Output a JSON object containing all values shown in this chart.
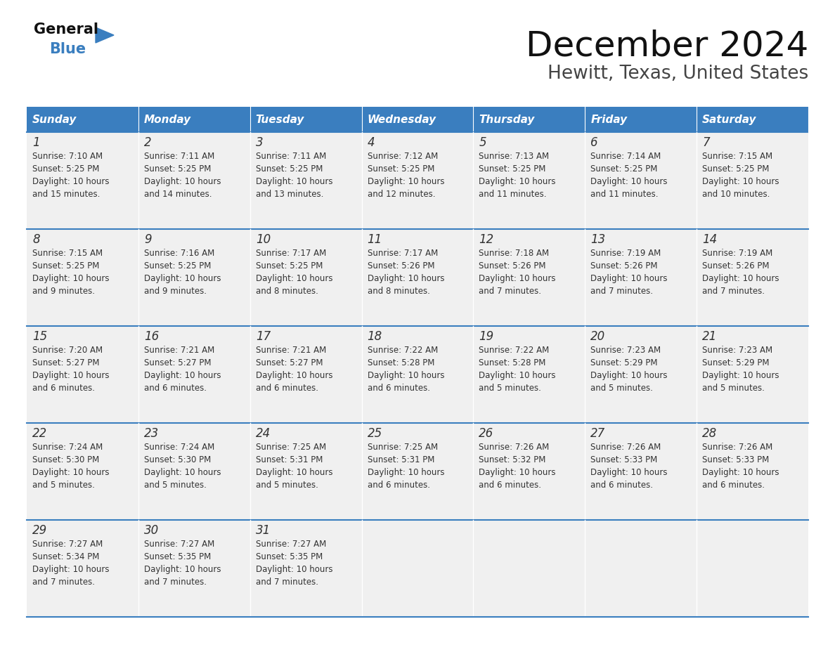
{
  "title": "December 2024",
  "subtitle": "Hewitt, Texas, United States",
  "header_bg": "#3a7ebf",
  "header_text_color": "#ffffff",
  "cell_bg_light": "#f0f0f0",
  "text_color": "#333333",
  "border_color": "#3a7ebf",
  "days_of_week": [
    "Sunday",
    "Monday",
    "Tuesday",
    "Wednesday",
    "Thursday",
    "Friday",
    "Saturday"
  ],
  "calendar": [
    [
      {
        "day": 1,
        "sunrise": "7:10 AM",
        "sunset": "5:25 PM",
        "daylight": "10 hours and 15 minutes."
      },
      {
        "day": 2,
        "sunrise": "7:11 AM",
        "sunset": "5:25 PM",
        "daylight": "10 hours and 14 minutes."
      },
      {
        "day": 3,
        "sunrise": "7:11 AM",
        "sunset": "5:25 PM",
        "daylight": "10 hours and 13 minutes."
      },
      {
        "day": 4,
        "sunrise": "7:12 AM",
        "sunset": "5:25 PM",
        "daylight": "10 hours and 12 minutes."
      },
      {
        "day": 5,
        "sunrise": "7:13 AM",
        "sunset": "5:25 PM",
        "daylight": "10 hours and 11 minutes."
      },
      {
        "day": 6,
        "sunrise": "7:14 AM",
        "sunset": "5:25 PM",
        "daylight": "10 hours and 11 minutes."
      },
      {
        "day": 7,
        "sunrise": "7:15 AM",
        "sunset": "5:25 PM",
        "daylight": "10 hours and 10 minutes."
      }
    ],
    [
      {
        "day": 8,
        "sunrise": "7:15 AM",
        "sunset": "5:25 PM",
        "daylight": "10 hours and 9 minutes."
      },
      {
        "day": 9,
        "sunrise": "7:16 AM",
        "sunset": "5:25 PM",
        "daylight": "10 hours and 9 minutes."
      },
      {
        "day": 10,
        "sunrise": "7:17 AM",
        "sunset": "5:25 PM",
        "daylight": "10 hours and 8 minutes."
      },
      {
        "day": 11,
        "sunrise": "7:17 AM",
        "sunset": "5:26 PM",
        "daylight": "10 hours and 8 minutes."
      },
      {
        "day": 12,
        "sunrise": "7:18 AM",
        "sunset": "5:26 PM",
        "daylight": "10 hours and 7 minutes."
      },
      {
        "day": 13,
        "sunrise": "7:19 AM",
        "sunset": "5:26 PM",
        "daylight": "10 hours and 7 minutes."
      },
      {
        "day": 14,
        "sunrise": "7:19 AM",
        "sunset": "5:26 PM",
        "daylight": "10 hours and 7 minutes."
      }
    ],
    [
      {
        "day": 15,
        "sunrise": "7:20 AM",
        "sunset": "5:27 PM",
        "daylight": "10 hours and 6 minutes."
      },
      {
        "day": 16,
        "sunrise": "7:21 AM",
        "sunset": "5:27 PM",
        "daylight": "10 hours and 6 minutes."
      },
      {
        "day": 17,
        "sunrise": "7:21 AM",
        "sunset": "5:27 PM",
        "daylight": "10 hours and 6 minutes."
      },
      {
        "day": 18,
        "sunrise": "7:22 AM",
        "sunset": "5:28 PM",
        "daylight": "10 hours and 6 minutes."
      },
      {
        "day": 19,
        "sunrise": "7:22 AM",
        "sunset": "5:28 PM",
        "daylight": "10 hours and 5 minutes."
      },
      {
        "day": 20,
        "sunrise": "7:23 AM",
        "sunset": "5:29 PM",
        "daylight": "10 hours and 5 minutes."
      },
      {
        "day": 21,
        "sunrise": "7:23 AM",
        "sunset": "5:29 PM",
        "daylight": "10 hours and 5 minutes."
      }
    ],
    [
      {
        "day": 22,
        "sunrise": "7:24 AM",
        "sunset": "5:30 PM",
        "daylight": "10 hours and 5 minutes."
      },
      {
        "day": 23,
        "sunrise": "7:24 AM",
        "sunset": "5:30 PM",
        "daylight": "10 hours and 5 minutes."
      },
      {
        "day": 24,
        "sunrise": "7:25 AM",
        "sunset": "5:31 PM",
        "daylight": "10 hours and 5 minutes."
      },
      {
        "day": 25,
        "sunrise": "7:25 AM",
        "sunset": "5:31 PM",
        "daylight": "10 hours and 6 minutes."
      },
      {
        "day": 26,
        "sunrise": "7:26 AM",
        "sunset": "5:32 PM",
        "daylight": "10 hours and 6 minutes."
      },
      {
        "day": 27,
        "sunrise": "7:26 AM",
        "sunset": "5:33 PM",
        "daylight": "10 hours and 6 minutes."
      },
      {
        "day": 28,
        "sunrise": "7:26 AM",
        "sunset": "5:33 PM",
        "daylight": "10 hours and 6 minutes."
      }
    ],
    [
      {
        "day": 29,
        "sunrise": "7:27 AM",
        "sunset": "5:34 PM",
        "daylight": "10 hours and 7 minutes."
      },
      {
        "day": 30,
        "sunrise": "7:27 AM",
        "sunset": "5:35 PM",
        "daylight": "10 hours and 7 minutes."
      },
      {
        "day": 31,
        "sunrise": "7:27 AM",
        "sunset": "5:35 PM",
        "daylight": "10 hours and 7 minutes."
      },
      null,
      null,
      null,
      null
    ]
  ]
}
